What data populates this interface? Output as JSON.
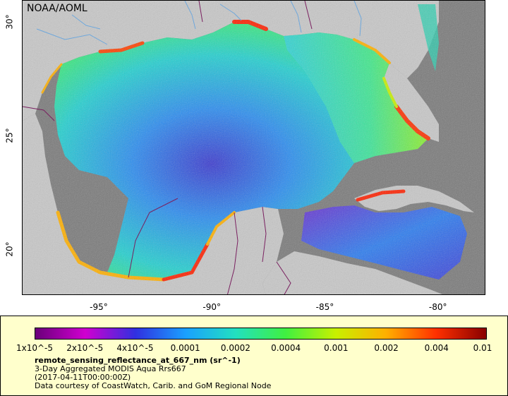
{
  "credit": "NOAA/AOML",
  "x_ticks": [
    {
      "label": "-95°",
      "lon": -95
    },
    {
      "label": "-90°",
      "lon": -90
    },
    {
      "label": "-85°",
      "lon": -85
    },
    {
      "label": "-80°",
      "lon": -80
    }
  ],
  "y_ticks": [
    {
      "label": "30°",
      "lat": 30
    },
    {
      "label": "25°",
      "lat": 25
    },
    {
      "label": "20°",
      "lat": 20
    }
  ],
  "extent": {
    "lon": [
      -98.5,
      -78
    ],
    "lat": [
      18,
      31
    ]
  },
  "colorbar": {
    "tick_labels": [
      "1x10^-5",
      "2x10^-5",
      "4x10^-5",
      "0.0001",
      "0.0002",
      "0.0004",
      "0.001",
      "0.002",
      "0.004",
      "0.01"
    ],
    "colors": [
      "#6a007a",
      "#d000d0",
      "#3030e0",
      "#1aa0ff",
      "#22e0c0",
      "#40f040",
      "#c8f000",
      "#ffb000",
      "#ff3000",
      "#880000"
    ]
  },
  "legend": {
    "title": "remote_sensing_reflectance_at_667_nm (sr^-1)",
    "line1": "3-Day Aggregated MODIS Aqua Rrs667",
    "line2": "(2017-04-11T00:00:00Z)",
    "line3": "Data courtesy of CoastWatch, Carib. and GoM Regional Node"
  },
  "colors": {
    "land": "#c8c8c8",
    "no_data": "#7a7a7a",
    "border": "#7a2060",
    "river": "#6fa8dc",
    "legend_bg": "#ffffcc"
  }
}
